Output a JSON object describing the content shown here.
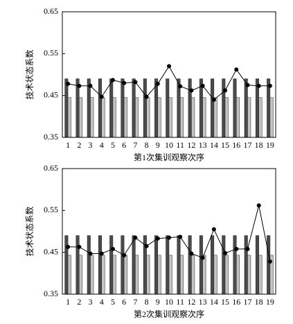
{
  "chart_data": [
    {
      "type": "bar",
      "ylabel": "技术状态系数",
      "xlabel": "第1次集训观察次序",
      "categories": [
        "1",
        "2",
        "3",
        "4",
        "5",
        "6",
        "7",
        "8",
        "9",
        "10",
        "11",
        "12",
        "13",
        "14",
        "15",
        "16",
        "17",
        "18",
        "19"
      ],
      "ylim": [
        0.35,
        0.65
      ],
      "yticks": [
        0.35,
        0.45,
        0.55,
        0.65
      ],
      "series": [
        {
          "type": "bar",
          "color": "#4a4a4a",
          "values": [
            0.49,
            0.49,
            0.49,
            0.49,
            0.49,
            0.49,
            0.49,
            0.49,
            0.49,
            0.49,
            0.49,
            0.49,
            0.49,
            0.49,
            0.49,
            0.49,
            0.49,
            0.49,
            0.49
          ]
        },
        {
          "type": "bar",
          "color": "#c4c4c4",
          "values": [
            0.445,
            0.445,
            0.445,
            0.445,
            0.445,
            0.445,
            0.445,
            0.445,
            0.445,
            0.445,
            0.445,
            0.445,
            0.445,
            0.445,
            0.445,
            0.445,
            0.445,
            0.445,
            0.445
          ]
        },
        {
          "type": "line",
          "color": "#000000",
          "values": [
            0.478,
            0.473,
            0.473,
            0.447,
            0.487,
            0.48,
            0.482,
            0.447,
            0.478,
            0.52,
            0.472,
            0.462,
            0.473,
            0.44,
            0.462,
            0.512,
            0.475,
            0.473,
            0.473
          ]
        }
      ]
    },
    {
      "type": "bar",
      "ylabel": "技术状态系数",
      "xlabel": "第2次集训观察次序",
      "categories": [
        "1",
        "2",
        "3",
        "4",
        "5",
        "6",
        "7",
        "8",
        "9",
        "10",
        "11",
        "12",
        "13",
        "14",
        "15",
        "16",
        "17",
        "18",
        "19"
      ],
      "ylim": [
        0.35,
        0.65
      ],
      "yticks": [
        0.35,
        0.45,
        0.55,
        0.65
      ],
      "series": [
        {
          "type": "bar",
          "color": "#4a4a4a",
          "values": [
            0.49,
            0.49,
            0.49,
            0.49,
            0.49,
            0.49,
            0.49,
            0.49,
            0.49,
            0.49,
            0.49,
            0.49,
            0.49,
            0.49,
            0.49,
            0.49,
            0.49,
            0.49,
            0.49
          ]
        },
        {
          "type": "bar",
          "color": "#c4c4c4",
          "values": [
            0.443,
            0.443,
            0.443,
            0.443,
            0.443,
            0.443,
            0.443,
            0.443,
            0.443,
            0.443,
            0.443,
            0.443,
            0.443,
            0.443,
            0.443,
            0.443,
            0.443,
            0.443,
            0.443
          ]
        },
        {
          "type": "line",
          "color": "#000000",
          "values": [
            0.463,
            0.463,
            0.447,
            0.447,
            0.458,
            0.443,
            0.485,
            0.465,
            0.483,
            0.485,
            0.487,
            0.447,
            0.437,
            0.505,
            0.448,
            0.458,
            0.458,
            0.562,
            0.428
          ]
        }
      ]
    }
  ]
}
